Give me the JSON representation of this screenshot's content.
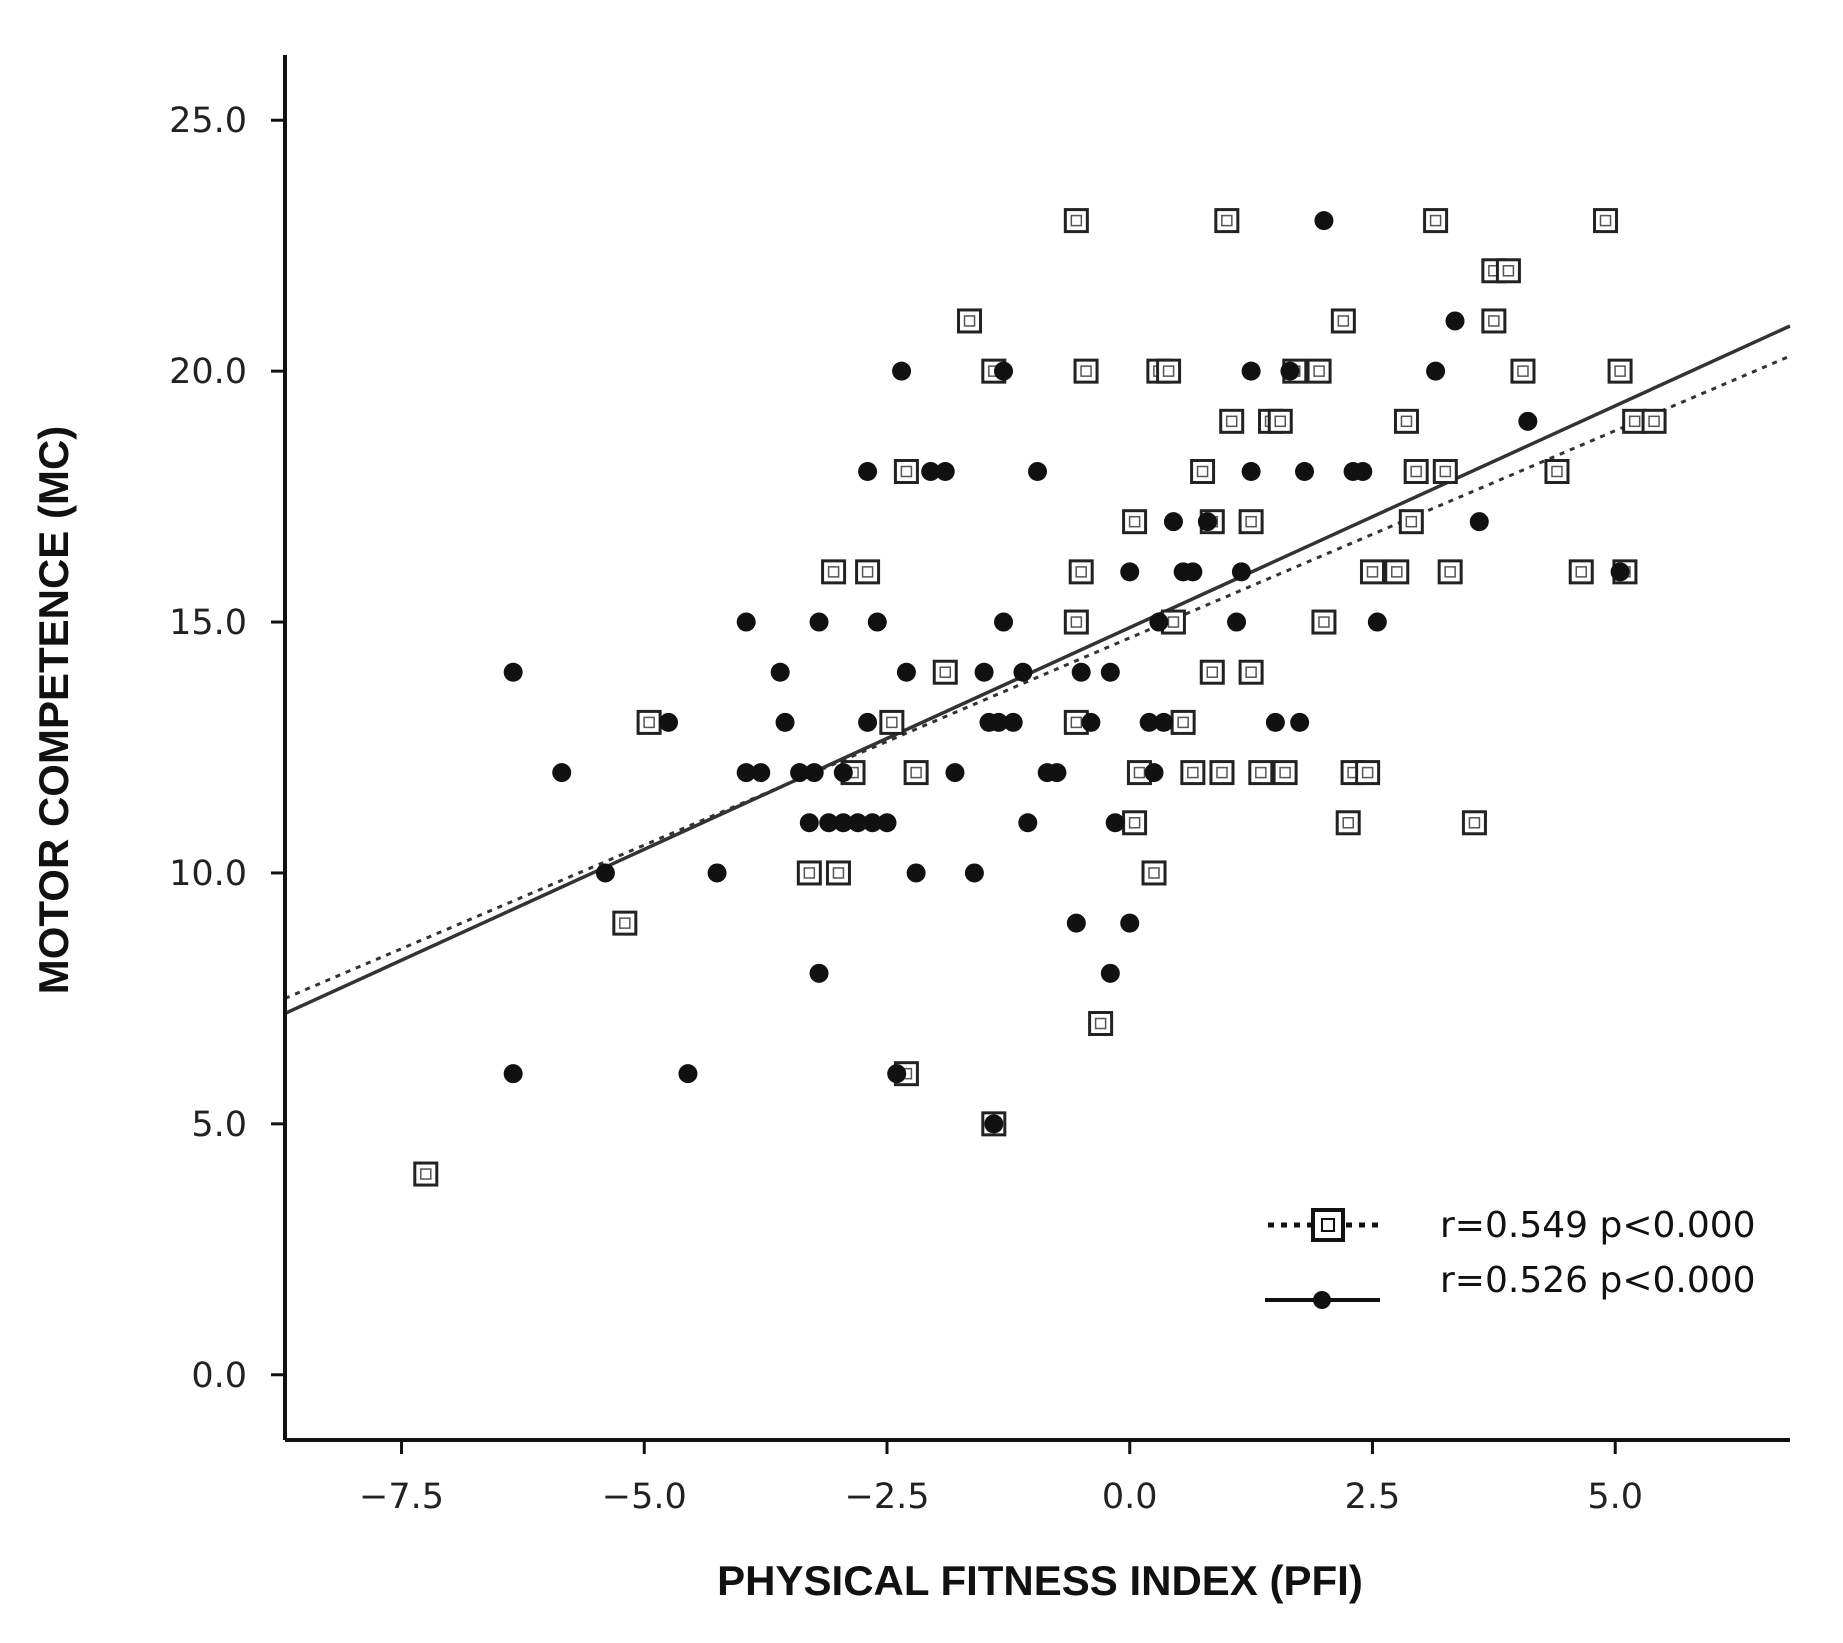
{
  "chart_data": {
    "type": "scatter",
    "xlabel": "PHYSICAL FITNESS INDEX (PFI)",
    "ylabel": "MOTOR COMPETENCE (MC)",
    "xlim": [
      -8.7,
      6.8
    ],
    "ylim": [
      -1.3,
      26.3
    ],
    "x_ticks": [
      -7.5,
      -5.0,
      -2.5,
      0.0,
      2.5,
      5.0
    ],
    "x_tick_labels": [
      "−7.5",
      "−5.0",
      "−2.5",
      "0.0",
      "2.5",
      "5.0"
    ],
    "y_ticks": [
      0,
      5,
      10,
      15,
      20,
      25
    ],
    "y_tick_labels": [
      "0.0",
      "5.0",
      "10.0",
      "15.0",
      "20.0",
      "25.0"
    ],
    "grid": false,
    "legend_placement": "bottom-right",
    "series": [
      {
        "marker": "open-square",
        "line": "dotted",
        "legend_label": "r=0.549 p<0.000",
        "regression": {
          "x": [
            -8.7,
            6.8
          ],
          "y": [
            7.5,
            20.3
          ]
        },
        "points": [
          [
            -7.25,
            4
          ],
          [
            -5.2,
            9
          ],
          [
            -4.95,
            13
          ],
          [
            -3.3,
            10
          ],
          [
            -3.0,
            10
          ],
          [
            -3.05,
            16
          ],
          [
            -2.7,
            16
          ],
          [
            -2.85,
            12
          ],
          [
            -2.45,
            13
          ],
          [
            -2.3,
            18
          ],
          [
            -2.2,
            12
          ],
          [
            -2.3,
            6
          ],
          [
            -1.9,
            14
          ],
          [
            -1.65,
            21
          ],
          [
            -1.4,
            20
          ],
          [
            -0.55,
            23
          ],
          [
            -0.55,
            15
          ],
          [
            -0.5,
            16
          ],
          [
            -0.45,
            20
          ],
          [
            -0.55,
            13
          ],
          [
            -0.3,
            7
          ],
          [
            0.05,
            11
          ],
          [
            0.05,
            17
          ],
          [
            0.1,
            12
          ],
          [
            0.25,
            10
          ],
          [
            0.3,
            20
          ],
          [
            0.4,
            20
          ],
          [
            0.45,
            15
          ],
          [
            0.55,
            13
          ],
          [
            0.65,
            12
          ],
          [
            0.75,
            18
          ],
          [
            0.85,
            17
          ],
          [
            0.85,
            14
          ],
          [
            0.95,
            12
          ],
          [
            1.0,
            23
          ],
          [
            1.05,
            19
          ],
          [
            1.25,
            17
          ],
          [
            1.25,
            14
          ],
          [
            1.35,
            12
          ],
          [
            1.45,
            19
          ],
          [
            1.55,
            19
          ],
          [
            1.6,
            12
          ],
          [
            1.7,
            20
          ],
          [
            1.95,
            20
          ],
          [
            2.0,
            15
          ],
          [
            2.2,
            21
          ],
          [
            2.25,
            11
          ],
          [
            2.3,
            12
          ],
          [
            2.45,
            12
          ],
          [
            2.5,
            16
          ],
          [
            2.75,
            16
          ],
          [
            2.85,
            19
          ],
          [
            2.9,
            17
          ],
          [
            2.95,
            18
          ],
          [
            3.15,
            23
          ],
          [
            3.25,
            18
          ],
          [
            3.3,
            16
          ],
          [
            3.55,
            11
          ],
          [
            3.75,
            22
          ],
          [
            3.75,
            21
          ],
          [
            3.9,
            22
          ],
          [
            4.05,
            20
          ],
          [
            4.4,
            18
          ],
          [
            4.65,
            16
          ],
          [
            4.9,
            23
          ],
          [
            5.05,
            20
          ],
          [
            5.1,
            16
          ],
          [
            5.2,
            19
          ],
          [
            5.4,
            19
          ],
          [
            -1.4,
            5
          ]
        ]
      },
      {
        "marker": "filled-circle",
        "line": "solid",
        "legend_label": "r=0.526 p<0.000",
        "regression": {
          "x": [
            -8.7,
            6.8
          ],
          "y": [
            7.2,
            20.9
          ]
        },
        "points": [
          [
            -6.35,
            14
          ],
          [
            -6.35,
            6
          ],
          [
            -5.85,
            12
          ],
          [
            -5.4,
            10
          ],
          [
            -4.75,
            13
          ],
          [
            -4.55,
            6
          ],
          [
            -4.25,
            10
          ],
          [
            -3.95,
            15
          ],
          [
            -3.95,
            12
          ],
          [
            -3.8,
            12
          ],
          [
            -3.6,
            14
          ],
          [
            -3.55,
            13
          ],
          [
            -3.4,
            12
          ],
          [
            -3.25,
            12
          ],
          [
            -3.2,
            15
          ],
          [
            -3.2,
            8
          ],
          [
            -3.3,
            11
          ],
          [
            -3.1,
            11
          ],
          [
            -2.95,
            12
          ],
          [
            -2.95,
            11
          ],
          [
            -2.8,
            11
          ],
          [
            -2.65,
            11
          ],
          [
            -2.7,
            13
          ],
          [
            -2.7,
            18
          ],
          [
            -2.6,
            15
          ],
          [
            -2.5,
            11
          ],
          [
            -2.4,
            6
          ],
          [
            -2.3,
            14
          ],
          [
            -2.35,
            20
          ],
          [
            -2.2,
            10
          ],
          [
            -2.05,
            18
          ],
          [
            -1.9,
            18
          ],
          [
            -1.8,
            12
          ],
          [
            -1.6,
            10
          ],
          [
            -1.5,
            14
          ],
          [
            -1.45,
            13
          ],
          [
            -1.35,
            13
          ],
          [
            -1.3,
            20
          ],
          [
            -1.3,
            15
          ],
          [
            -1.2,
            13
          ],
          [
            -1.1,
            14
          ],
          [
            -1.05,
            11
          ],
          [
            -0.95,
            18
          ],
          [
            -0.85,
            12
          ],
          [
            -0.75,
            12
          ],
          [
            -0.55,
            9
          ],
          [
            -0.5,
            14
          ],
          [
            -0.4,
            13
          ],
          [
            -0.2,
            14
          ],
          [
            -0.2,
            8
          ],
          [
            -0.15,
            11
          ],
          [
            0.0,
            16
          ],
          [
            0.0,
            9
          ],
          [
            0.2,
            13
          ],
          [
            0.25,
            12
          ],
          [
            0.3,
            15
          ],
          [
            0.35,
            13
          ],
          [
            0.45,
            17
          ],
          [
            0.55,
            16
          ],
          [
            0.65,
            16
          ],
          [
            0.8,
            17
          ],
          [
            1.1,
            15
          ],
          [
            1.15,
            16
          ],
          [
            1.25,
            20
          ],
          [
            1.25,
            18
          ],
          [
            1.5,
            13
          ],
          [
            1.65,
            20
          ],
          [
            1.75,
            13
          ],
          [
            1.8,
            18
          ],
          [
            2.0,
            23
          ],
          [
            2.3,
            18
          ],
          [
            2.4,
            18
          ],
          [
            2.55,
            15
          ],
          [
            3.15,
            20
          ],
          [
            3.35,
            21
          ],
          [
            3.6,
            17
          ],
          [
            4.1,
            19
          ],
          [
            5.05,
            16
          ],
          [
            -1.4,
            5
          ]
        ]
      }
    ]
  }
}
